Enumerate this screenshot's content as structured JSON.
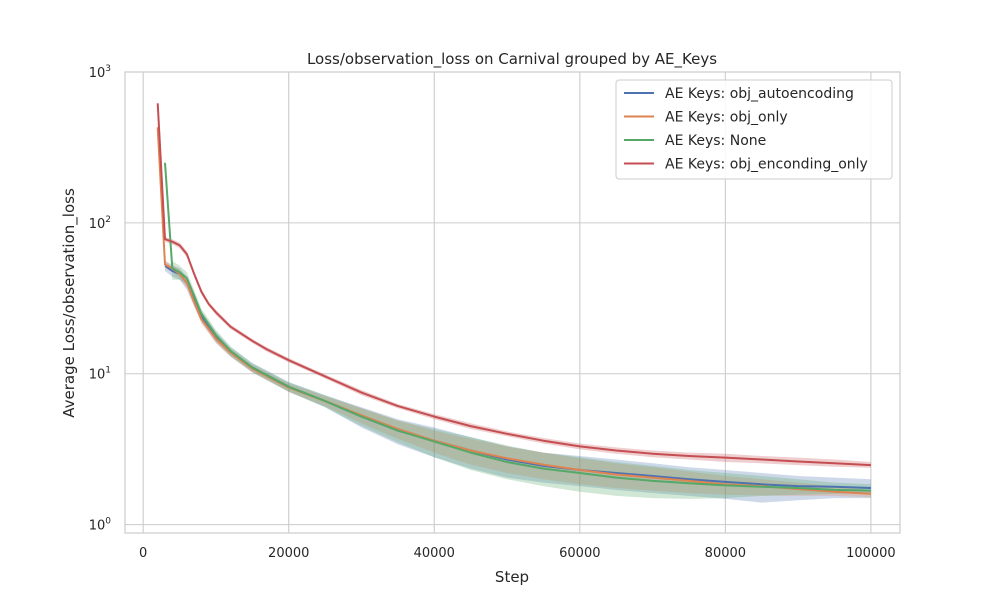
{
  "chart_data": {
    "type": "line",
    "title": "Loss/observation_loss on Carnival grouped by AE_Keys",
    "xlabel": "Step",
    "ylabel": "Average Loss/observation_loss",
    "xlim": [
      -2500,
      104000
    ],
    "ylim": [
      0.88,
      1000
    ],
    "yscale": "log",
    "grid": true,
    "legend_position": "top-right",
    "x_ticks": [
      0,
      20000,
      40000,
      60000,
      80000,
      100000
    ],
    "x_tick_labels": [
      "0",
      "20000",
      "40000",
      "60000",
      "80000",
      "100000"
    ],
    "y_ticks": [
      1,
      10,
      100,
      1000
    ],
    "y_tick_base": "10",
    "y_tick_exponents": [
      "0",
      "1",
      "2",
      "3"
    ],
    "series": [
      {
        "name": "AE Keys: obj_autoencoding",
        "color": "#4c72b0",
        "x": [
          3000,
          4000,
          5000,
          6000,
          7000,
          8000,
          10000,
          12000,
          15000,
          20000,
          25000,
          30000,
          35000,
          40000,
          45000,
          50000,
          55000,
          60000,
          65000,
          70000,
          75000,
          80000,
          85000,
          90000,
          95000,
          100000
        ],
        "y": [
          52,
          48,
          46,
          40,
          31,
          24,
          17.5,
          14,
          11,
          8.2,
          6.6,
          5.2,
          4.2,
          3.6,
          3.1,
          2.7,
          2.45,
          2.3,
          2.2,
          2.1,
          2.0,
          1.92,
          1.85,
          1.8,
          1.78,
          1.75
        ],
        "lower": [
          48,
          44,
          42,
          36,
          28,
          22,
          16,
          13,
          10.2,
          7.6,
          6.0,
          4.4,
          3.4,
          2.8,
          2.35,
          2.05,
          1.9,
          1.8,
          1.7,
          1.62,
          1.55,
          1.48,
          1.4,
          1.45,
          1.5,
          1.5
        ],
        "upper": [
          56,
          52,
          50,
          44,
          34,
          26,
          19,
          15,
          11.8,
          8.8,
          7.2,
          6.0,
          5.0,
          4.4,
          3.8,
          3.3,
          3.0,
          2.85,
          2.7,
          2.55,
          2.4,
          2.3,
          2.2,
          2.1,
          2.05,
          2.0
        ]
      },
      {
        "name": "AE Keys: obj_only",
        "color": "#dd8452",
        "x": [
          2000,
          3000,
          4000,
          5000,
          6000,
          7000,
          8000,
          10000,
          12000,
          15000,
          20000,
          25000,
          30000,
          35000,
          40000,
          45000,
          50000,
          55000,
          60000,
          65000,
          70000,
          75000,
          80000,
          85000,
          90000,
          95000,
          100000
        ],
        "y": [
          430,
          53,
          50,
          46,
          40,
          30,
          23,
          17,
          13.8,
          10.8,
          8.1,
          6.6,
          5.3,
          4.3,
          3.6,
          3.1,
          2.75,
          2.5,
          2.3,
          2.15,
          2.05,
          1.95,
          1.85,
          1.8,
          1.72,
          1.65,
          1.6
        ],
        "lower": [
          400,
          50,
          47,
          43,
          37,
          28,
          21.5,
          16,
          13,
          10.2,
          7.6,
          6.1,
          4.7,
          3.7,
          3.0,
          2.5,
          2.2,
          2.0,
          1.85,
          1.75,
          1.68,
          1.62,
          1.58,
          1.56,
          1.55,
          1.55,
          1.52
        ],
        "upper": [
          460,
          56,
          53,
          49,
          43,
          32,
          24.5,
          18,
          14.6,
          11.4,
          8.6,
          7.1,
          5.9,
          4.9,
          4.2,
          3.7,
          3.3,
          3.0,
          2.75,
          2.55,
          2.4,
          2.25,
          2.1,
          2.0,
          1.9,
          1.8,
          1.7
        ]
      },
      {
        "name": "AE Keys: None",
        "color": "#55a868",
        "x": [
          3000,
          4000,
          5000,
          6000,
          7000,
          8000,
          10000,
          12000,
          15000,
          20000,
          25000,
          30000,
          35000,
          40000,
          45000,
          50000,
          55000,
          60000,
          65000,
          70000,
          75000,
          80000,
          85000,
          90000,
          95000,
          100000
        ],
        "y": [
          250,
          50,
          47,
          43,
          33,
          25,
          18,
          14.2,
          11,
          8.2,
          6.6,
          5.2,
          4.2,
          3.55,
          3.0,
          2.6,
          2.35,
          2.2,
          2.05,
          1.95,
          1.88,
          1.82,
          1.78,
          1.75,
          1.7,
          1.68
        ],
        "lower": [
          230,
          42,
          42,
          39,
          30,
          23,
          16.5,
          13.2,
          10.3,
          7.6,
          6.0,
          4.5,
          3.5,
          2.8,
          2.3,
          2.0,
          1.8,
          1.65,
          1.55,
          1.5,
          1.48,
          1.5,
          1.55,
          1.58,
          1.6,
          1.6
        ],
        "upper": [
          270,
          56,
          52,
          47,
          36,
          27,
          19.5,
          15.2,
          11.7,
          8.8,
          7.2,
          5.9,
          4.9,
          4.3,
          3.8,
          3.35,
          3.0,
          2.8,
          2.6,
          2.45,
          2.3,
          2.2,
          2.1,
          2.0,
          1.9,
          1.85
        ]
      },
      {
        "name": "AE Keys: obj_enconding_only",
        "color": "#c44e52",
        "x": [
          2000,
          3000,
          4000,
          5000,
          6000,
          7000,
          8000,
          9000,
          10000,
          12000,
          15000,
          17000,
          20000,
          25000,
          30000,
          35000,
          40000,
          45000,
          50000,
          55000,
          60000,
          65000,
          70000,
          75000,
          80000,
          85000,
          90000,
          95000,
          100000
        ],
        "y": [
          620,
          78,
          75,
          71,
          62,
          46,
          35,
          29,
          25.5,
          20.5,
          16.5,
          14.5,
          12.3,
          9.6,
          7.5,
          6.1,
          5.2,
          4.5,
          4.0,
          3.6,
          3.3,
          3.1,
          2.95,
          2.85,
          2.78,
          2.7,
          2.62,
          2.55,
          2.48
        ],
        "lower": [
          600,
          75,
          72,
          68,
          59,
          44,
          33.5,
          28,
          24.5,
          19.8,
          16.0,
          14.0,
          11.9,
          9.3,
          7.2,
          5.9,
          5.0,
          4.3,
          3.85,
          3.45,
          3.15,
          2.95,
          2.8,
          2.7,
          2.6,
          2.55,
          2.48,
          2.42,
          2.38
        ],
        "upper": [
          640,
          81,
          78,
          74,
          65,
          48,
          36.5,
          30,
          26.5,
          21.2,
          17.0,
          15.0,
          12.7,
          9.9,
          7.8,
          6.3,
          5.4,
          4.7,
          4.15,
          3.75,
          3.45,
          3.25,
          3.1,
          3.0,
          2.95,
          2.85,
          2.78,
          2.7,
          2.6
        ]
      }
    ]
  }
}
